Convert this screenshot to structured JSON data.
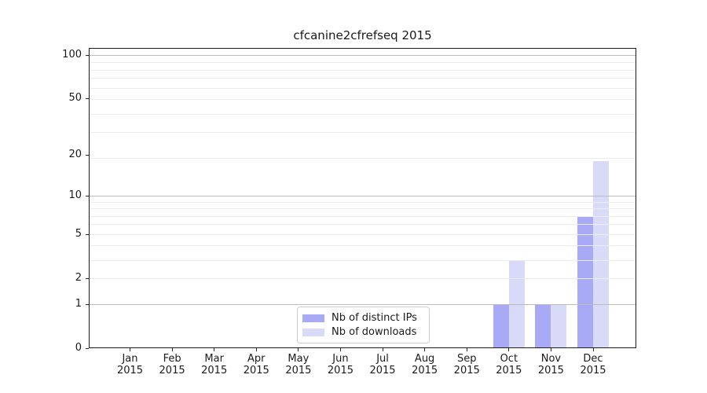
{
  "chart_data": {
    "type": "bar",
    "title": "cfcanine2cfrefseq 2015",
    "categories": [
      "Jan",
      "Feb",
      "Mar",
      "Apr",
      "May",
      "Jun",
      "Jul",
      "Aug",
      "Sep",
      "Oct",
      "Nov",
      "Dec"
    ],
    "year_label": "2015",
    "series": [
      {
        "name": "Nb of distinct IPs",
        "color": "#a8aaf5",
        "values": [
          0,
          0,
          0,
          0,
          0,
          0,
          0,
          0,
          0,
          1,
          1,
          7
        ]
      },
      {
        "name": "Nb of downloads",
        "color": "#d9daf8",
        "values": [
          0,
          0,
          0,
          0,
          0,
          0,
          0,
          0,
          0,
          3,
          1,
          18
        ]
      }
    ],
    "y_ticks": [
      0,
      1,
      2,
      5,
      10,
      20,
      50,
      100
    ],
    "y_scale": "log10(value+1)",
    "ylim": [
      0,
      112
    ],
    "xlabel": "",
    "ylabel": "",
    "grid": "on",
    "legend_position": "lower center inside axes"
  }
}
